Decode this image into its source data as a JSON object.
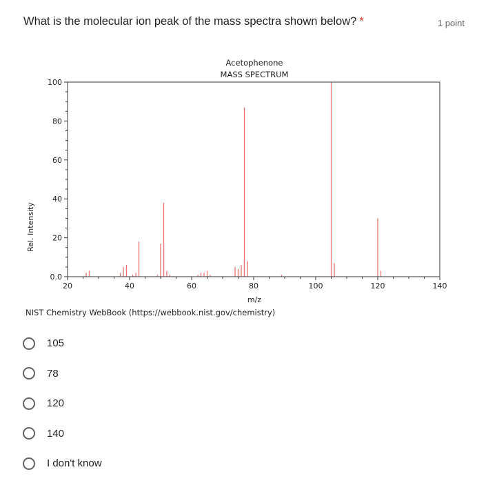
{
  "question": {
    "text": "What is the molecular ion peak of the mass spectra shown below?",
    "required_mark": "*",
    "points": "1 point"
  },
  "chart_data": {
    "type": "bar",
    "title": "Acetophenone",
    "subtitle": "MASS SPECTRUM",
    "xlabel": "m/z",
    "ylabel": "Rel. Intensity",
    "xlim": [
      20,
      140
    ],
    "ylim": [
      0,
      100
    ],
    "x_ticks": [
      20,
      40,
      60,
      80,
      100,
      120,
      140
    ],
    "y_ticks": [
      0,
      20,
      40,
      60,
      80,
      100
    ],
    "y_tick_labels": [
      "0.0",
      "20",
      "40",
      "60",
      "80",
      "100"
    ],
    "bar_color": "#e8736f",
    "peaks": [
      {
        "x": 26,
        "y": 2
      },
      {
        "x": 27,
        "y": 3
      },
      {
        "x": 37,
        "y": 2
      },
      {
        "x": 38,
        "y": 5
      },
      {
        "x": 39,
        "y": 6
      },
      {
        "x": 41,
        "y": 1
      },
      {
        "x": 42,
        "y": 2
      },
      {
        "x": 43,
        "y": 18
      },
      {
        "x": 49,
        "y": 1
      },
      {
        "x": 50,
        "y": 17
      },
      {
        "x": 51,
        "y": 38
      },
      {
        "x": 52,
        "y": 3
      },
      {
        "x": 53,
        "y": 1
      },
      {
        "x": 62,
        "y": 1
      },
      {
        "x": 63,
        "y": 2
      },
      {
        "x": 64,
        "y": 2
      },
      {
        "x": 65,
        "y": 3
      },
      {
        "x": 66,
        "y": 1
      },
      {
        "x": 74,
        "y": 5
      },
      {
        "x": 75,
        "y": 4
      },
      {
        "x": 76,
        "y": 6
      },
      {
        "x": 77,
        "y": 87
      },
      {
        "x": 78,
        "y": 8
      },
      {
        "x": 89,
        "y": 1
      },
      {
        "x": 105,
        "y": 100
      },
      {
        "x": 106,
        "y": 7
      },
      {
        "x": 120,
        "y": 30
      },
      {
        "x": 121,
        "y": 3
      }
    ]
  },
  "credit": "NIST Chemistry WebBook (https://webbook.nist.gov/chemistry)",
  "options": [
    {
      "label": "105"
    },
    {
      "label": "78"
    },
    {
      "label": "120"
    },
    {
      "label": "140"
    },
    {
      "label": "I don't know"
    }
  ]
}
